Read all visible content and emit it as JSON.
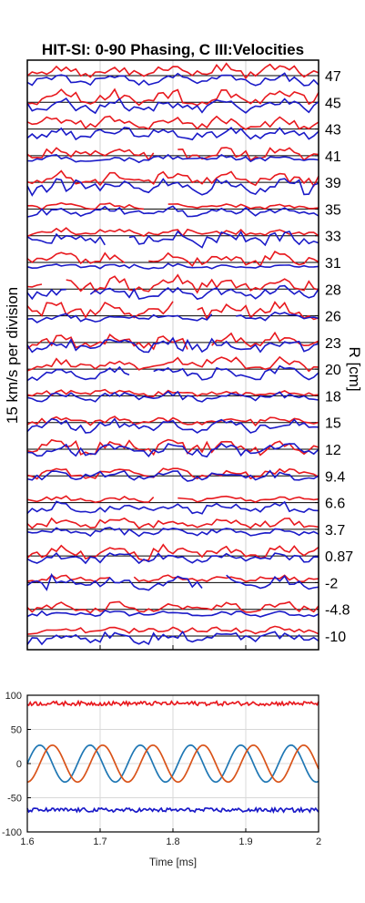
{
  "chart_data": [
    {
      "type": "line",
      "title": "HIT-SI: 0-90 Phasing, C III:Velocities",
      "ylabel": "15 km/s per division",
      "ylabel_right": "R [cm]",
      "r_labels": [
        "47",
        "45",
        "43",
        "41",
        "39",
        "35",
        "33",
        "31",
        "28",
        "26",
        "23",
        "20",
        "18",
        "15",
        "12",
        "9.4",
        "6.6",
        "3.7",
        "0.87",
        "-2",
        "-4.8",
        "-10"
      ],
      "xlim": [
        1.6,
        2.0
      ],
      "grid": true,
      "series_colors": {
        "odd": "#e8191e",
        "even": "#1a1ac8"
      }
    },
    {
      "type": "line",
      "xlim": [
        1.6,
        2.0
      ],
      "ylim": [
        -100,
        100
      ],
      "x_ticks": [
        "1.6",
        "1.7",
        "1.8",
        "1.9",
        "2"
      ],
      "y_ticks": [
        "100",
        "50",
        "0",
        "-50",
        "-100"
      ],
      "xlabel": "Time [ms]",
      "grid": true,
      "series": [
        {
          "color": "#e8191e",
          "baseline": 88,
          "noise": 3
        },
        {
          "color": "#1a1ac8",
          "baseline": -68,
          "noise": 3
        },
        {
          "color": "#1f77b4",
          "amplitude": 27,
          "period_ms": 0.069,
          "phase": 0.0
        },
        {
          "color": "#d95319",
          "amplitude": 27,
          "period_ms": 0.069,
          "phase": -1.5708
        }
      ]
    }
  ]
}
